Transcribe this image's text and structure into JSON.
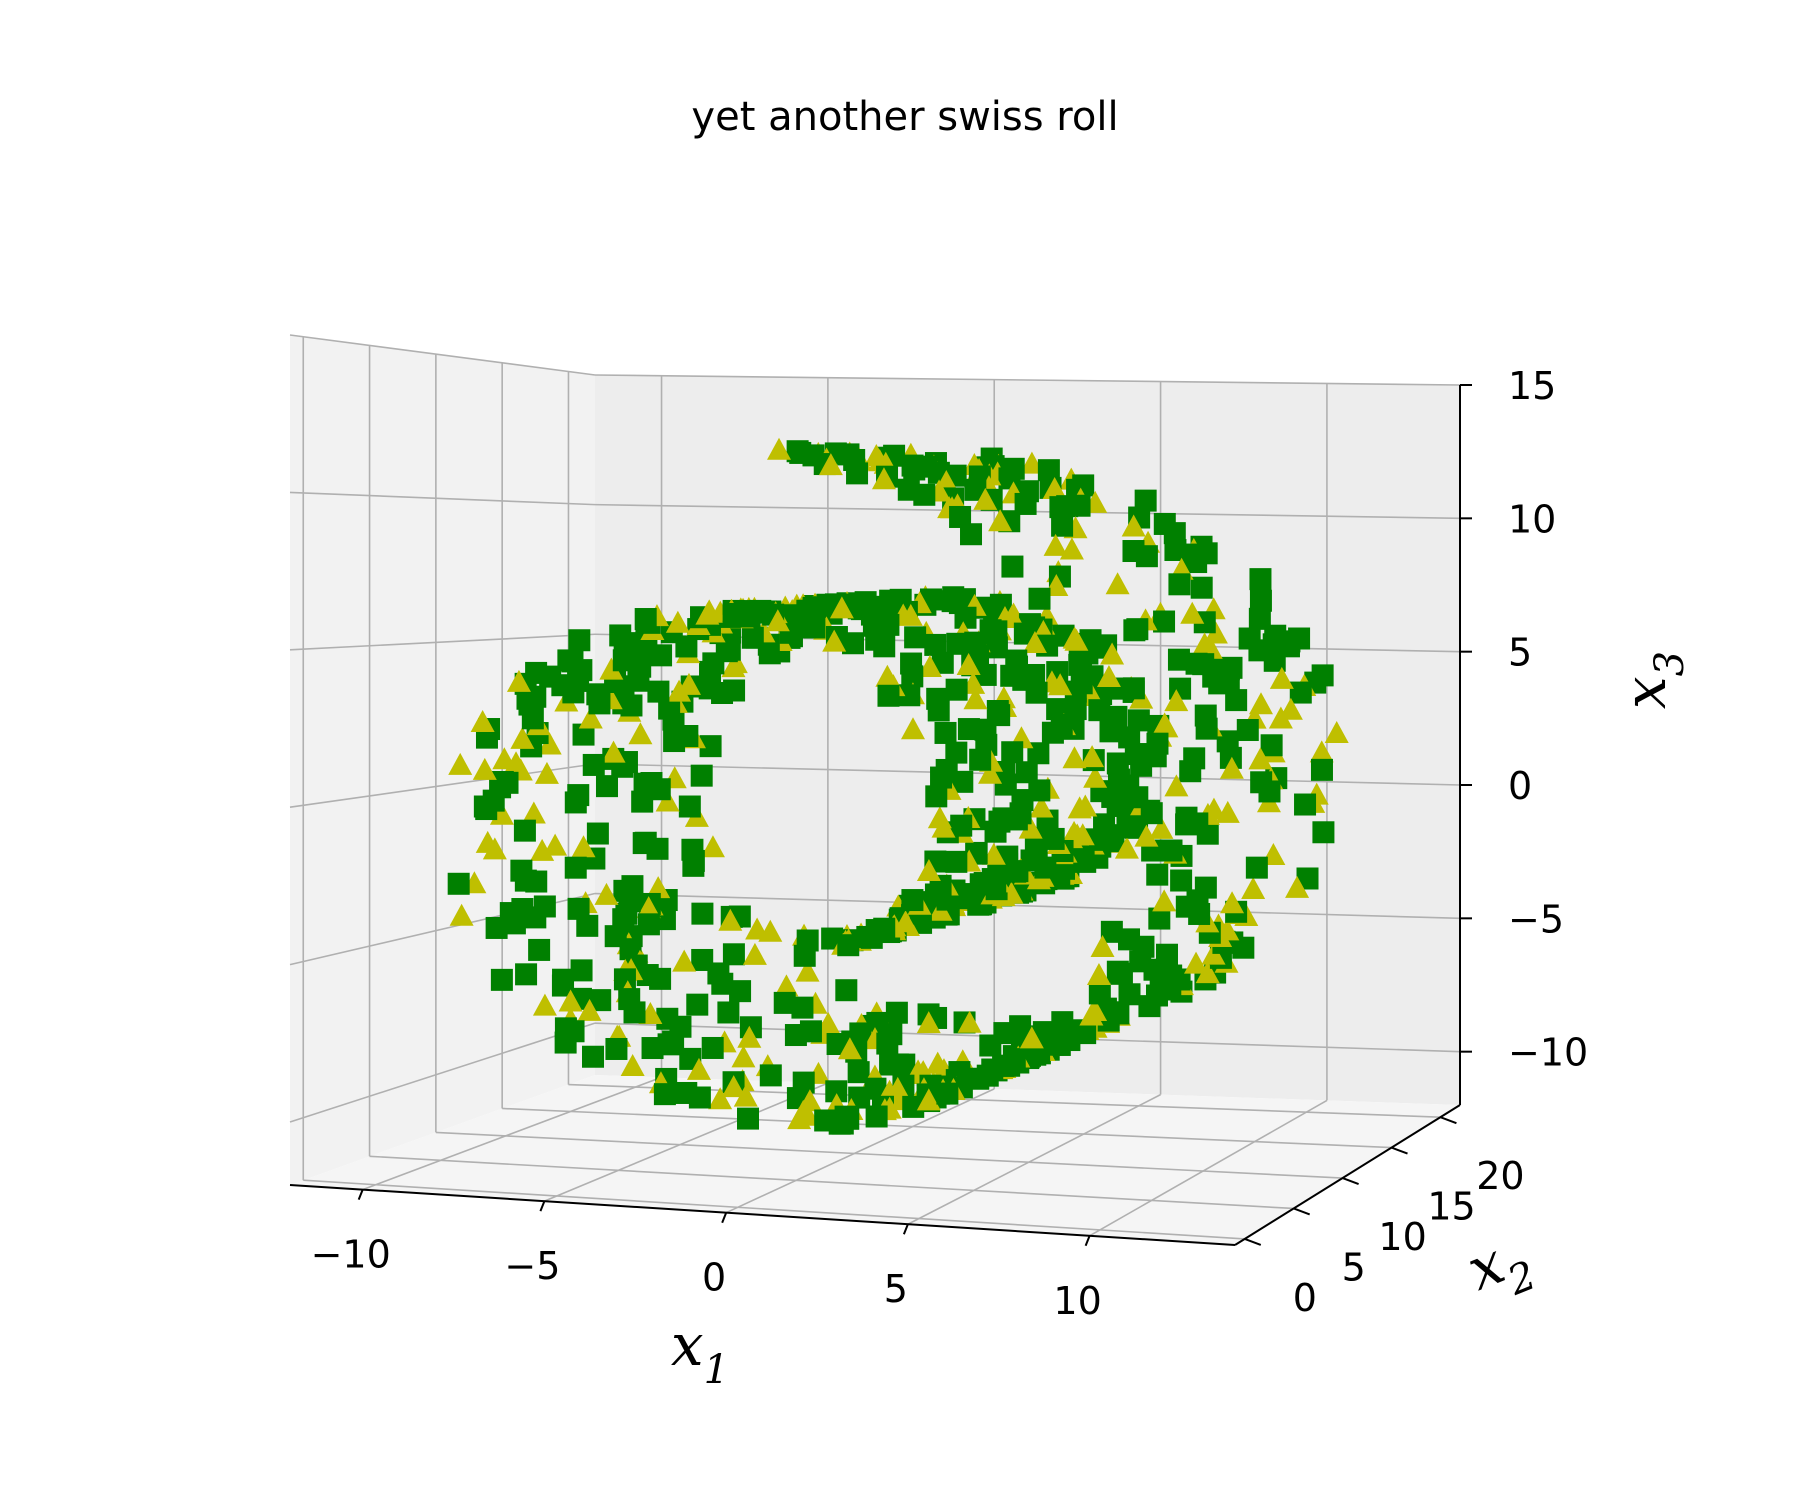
{
  "chart_data": {
    "type": "scatter",
    "title": "yet another swiss roll",
    "axes": {
      "x": {
        "label": "x",
        "subscript": "1",
        "lim": [
          -12,
          14
        ],
        "ticks": [
          -10,
          -5,
          0,
          5,
          10
        ],
        "tick_labels": [
          "−10",
          "−5",
          "0",
          "5",
          "10"
        ]
      },
      "y": {
        "label": "x",
        "subscript": "2",
        "lim": [
          -1,
          22
        ],
        "ticks": [
          0,
          5,
          10,
          15,
          20
        ],
        "tick_labels": [
          "0",
          "5",
          "10",
          "15",
          "20"
        ]
      },
      "z": {
        "label": "x",
        "subscript": "3",
        "lim": [
          -12,
          15
        ],
        "ticks": [
          -10,
          -5,
          0,
          5,
          10,
          15
        ],
        "tick_labels": [
          "−10",
          "−5",
          "0",
          "5",
          "10",
          "15"
        ]
      }
    },
    "grid": true,
    "view": {
      "elev": 10,
      "azim": -70
    },
    "series": [
      {
        "marker": "square",
        "color": "#008000",
        "class": "green squares",
        "generator": {
          "t_min": 4.712,
          "t_max": 14.137,
          "points": 640,
          "y_range": [
            0,
            21
          ],
          "x_formula": "t*cos(t)",
          "z_formula": "t*sin(t)"
        }
      },
      {
        "marker": "triangle",
        "color": "#bfbf00",
        "class": "yellow triangles",
        "generator": {
          "t_min": 4.712,
          "t_max": 14.137,
          "points": 360,
          "y_range": [
            0,
            21
          ],
          "x_formula": "t*cos(t)",
          "z_formula": "t*sin(t)"
        }
      }
    ]
  }
}
